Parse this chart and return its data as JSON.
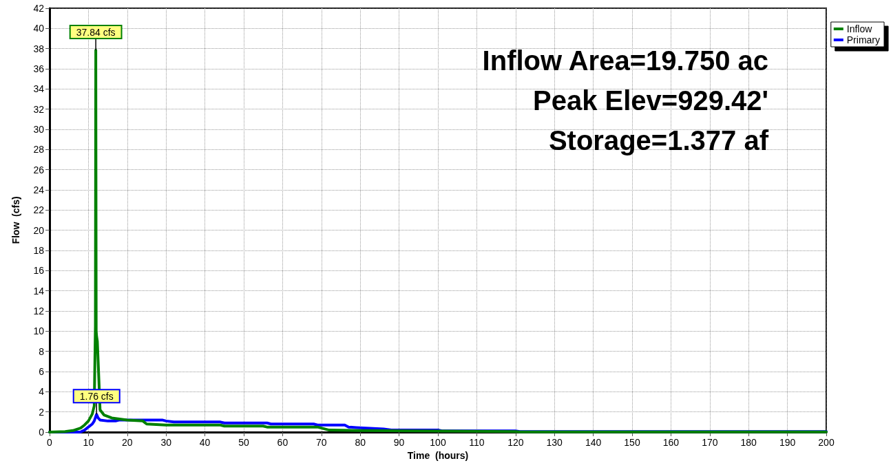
{
  "chart_data": {
    "type": "line",
    "xlabel": "Time  (hours)",
    "ylabel": "Flow  (cfs)",
    "xlim": [
      0,
      200
    ],
    "xticks": [
      0,
      10,
      20,
      30,
      40,
      50,
      60,
      70,
      80,
      90,
      100,
      110,
      120,
      130,
      140,
      150,
      160,
      170,
      180,
      190,
      200
    ],
    "ylim": [
      0,
      42
    ],
    "yticks": [
      0,
      2,
      4,
      6,
      8,
      10,
      12,
      14,
      16,
      18,
      20,
      22,
      24,
      26,
      28,
      30,
      32,
      34,
      36,
      38,
      40,
      42
    ],
    "grid": true,
    "legend": "top right",
    "marker": "none",
    "line_style": "solid",
    "series": [
      {
        "name": "Inflow",
        "color": "#008000",
        "x": [
          0,
          4,
          6,
          8,
          9,
          10,
          11,
          11.5,
          11.8,
          11.9,
          12.0,
          12.1,
          12.3,
          13,
          14,
          16,
          20,
          24,
          25,
          30,
          44,
          45,
          55,
          56,
          69,
          70,
          72,
          80,
          100,
          120,
          121,
          200
        ],
        "values": [
          0,
          0.05,
          0.15,
          0.4,
          0.7,
          1.1,
          1.8,
          2.6,
          10.5,
          37.84,
          10,
          9.5,
          9,
          2.2,
          1.7,
          1.4,
          1.2,
          1.1,
          0.8,
          0.7,
          0.7,
          0.6,
          0.6,
          0.5,
          0.5,
          0.4,
          0.2,
          0.15,
          0.1,
          0.05,
          0.02,
          0.02
        ]
      },
      {
        "name": "Primary",
        "color": "#0000ff",
        "x": [
          0,
          7,
          8,
          9,
          10,
          11,
          11.5,
          12.1,
          12.5,
          13,
          15,
          17,
          18,
          29,
          30,
          32,
          44,
          45,
          56,
          57,
          68,
          69,
          76,
          77,
          79,
          86,
          88,
          100,
          101,
          120,
          121,
          200
        ],
        "values": [
          0,
          0,
          0.02,
          0.2,
          0.5,
          0.8,
          1.1,
          1.76,
          1.4,
          1.2,
          1.1,
          1.1,
          1.2,
          1.2,
          1.1,
          1.0,
          1.0,
          0.9,
          0.9,
          0.8,
          0.8,
          0.7,
          0.7,
          0.5,
          0.45,
          0.3,
          0.2,
          0.2,
          0.12,
          0.12,
          0.05,
          0.05
        ]
      }
    ],
    "annotations": [
      {
        "text": "37.84 cfs",
        "x": 11.9,
        "y": 37.84
      },
      {
        "text": "1.76 cfs",
        "x": 12.1,
        "y": 1.76
      },
      "Inflow Area=19.750 ac",
      "Peak Elev=929.42'",
      "Storage=1.377 af"
    ]
  }
}
